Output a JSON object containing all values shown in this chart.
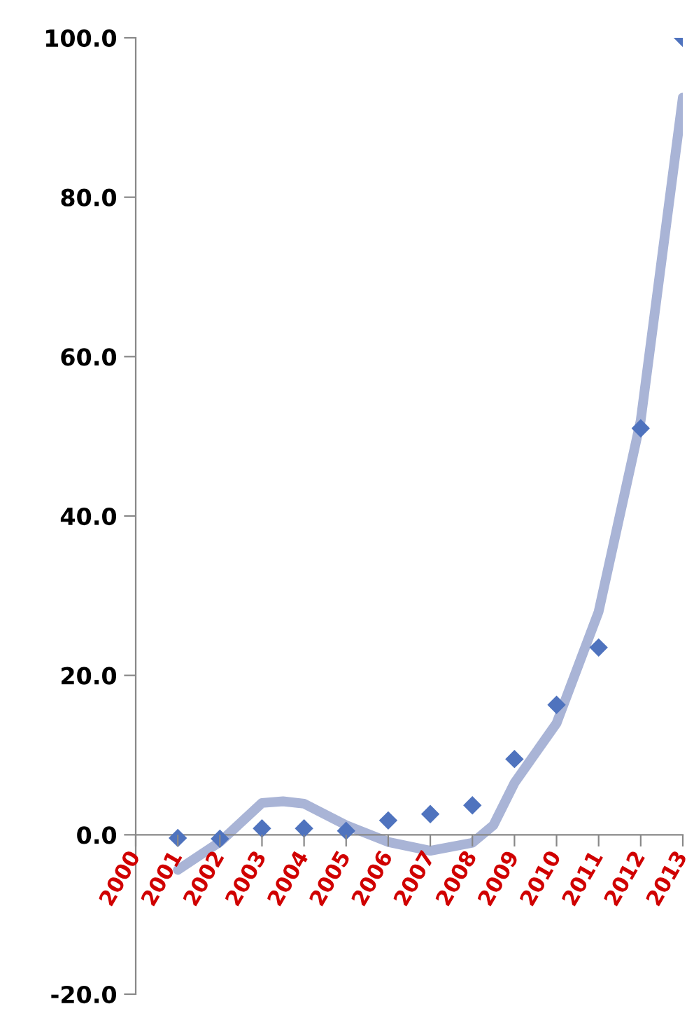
{
  "chart_data": {
    "type": "scatter",
    "grid": false,
    "series": [
      {
        "marker": "diamond",
        "color": "#4f73be",
        "x": [
          2001,
          2002,
          2003,
          2004,
          2005,
          2006,
          2007,
          2008,
          2009,
          2010,
          2011,
          2012,
          2013
        ],
        "values": [
          -0.4,
          -0.5,
          0.8,
          0.8,
          0.5,
          1.8,
          2.6,
          3.7,
          9.5,
          16.3,
          23.5,
          51,
          100
        ]
      },
      {
        "type": "line",
        "color": "#a9b4d6",
        "x": [
          2001,
          2002,
          2003,
          2003.5,
          2004,
          2005,
          2006,
          2007,
          2008,
          2008.5,
          2009,
          2010,
          2011,
          2012,
          2013
        ],
        "values": [
          -4.4,
          -0.9,
          4,
          4.2,
          3.9,
          1.2,
          -0.9,
          -2,
          -1,
          1.2,
          6.5,
          14,
          28,
          52,
          92.5
        ]
      }
    ],
    "xlim": [
      2000,
      2013
    ],
    "xticks": [
      2000,
      2001,
      2002,
      2003,
      2004,
      2005,
      2006,
      2007,
      2008,
      2009,
      2010,
      2011,
      2012,
      2013
    ],
    "ylim": [
      -20,
      100
    ],
    "yticks": [
      {
        "value": -20,
        "label": "-20.0"
      },
      {
        "value": 0,
        "label": "0.0"
      },
      {
        "value": 20,
        "label": "20.0"
      },
      {
        "value": 40,
        "label": "40.0"
      },
      {
        "value": 60,
        "label": "60.0"
      },
      {
        "value": 80,
        "label": "80.0"
      },
      {
        "value": 100,
        "label": "100.0"
      }
    ]
  }
}
